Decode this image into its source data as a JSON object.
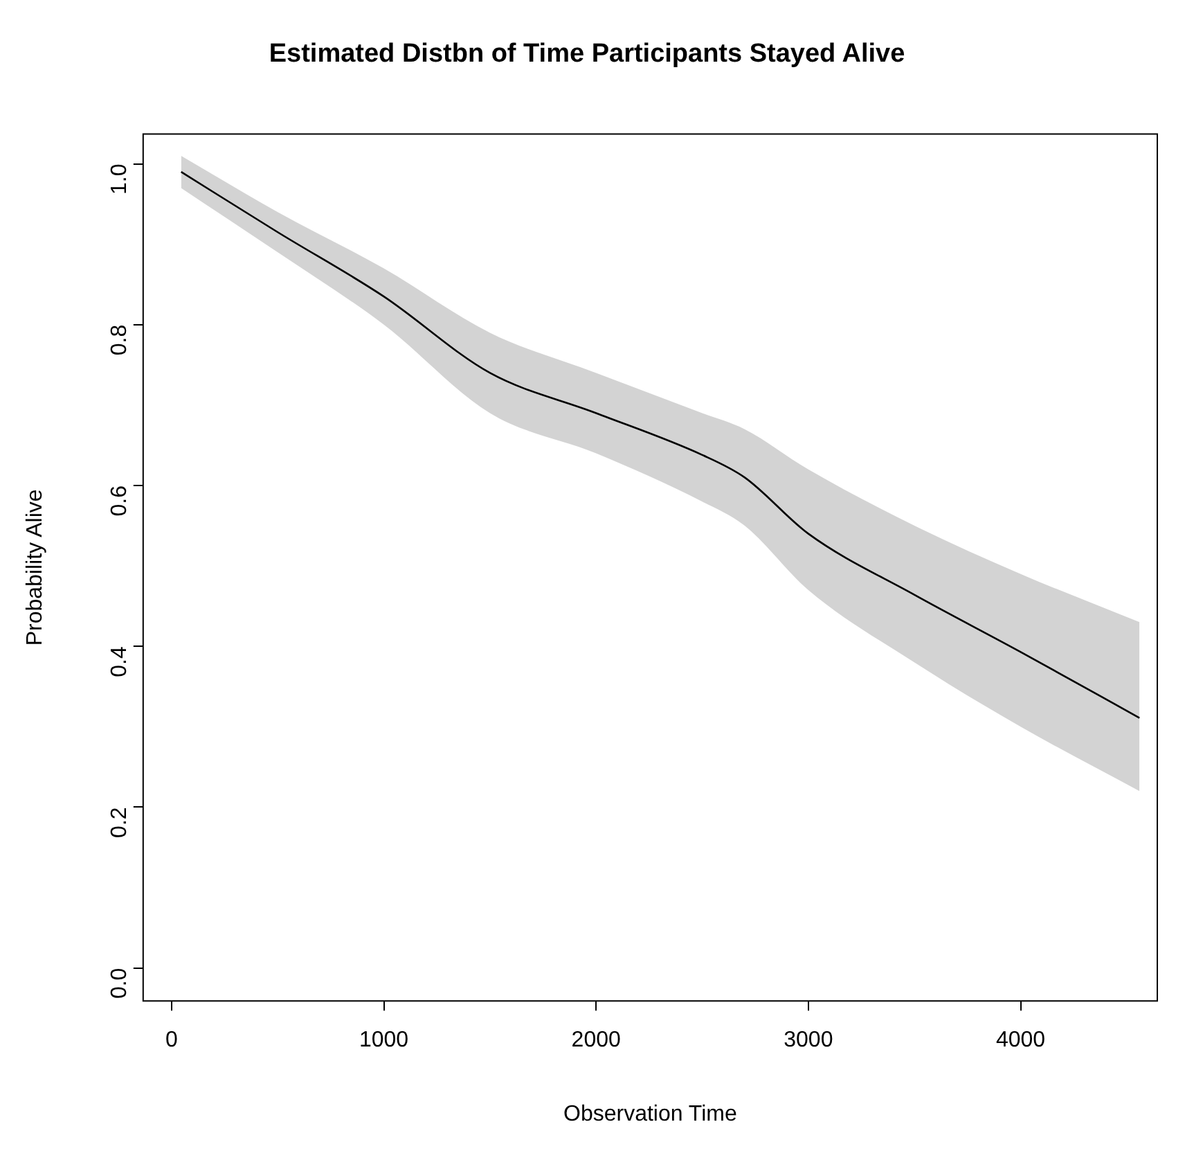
{
  "chart_data": {
    "type": "line",
    "title": "Estimated Distbn of Time Participants Stayed Alive",
    "xlabel": "Observation Time",
    "ylabel": "Probability Alive",
    "x": [
      45,
      500,
      1000,
      1500,
      2000,
      2500,
      2700,
      3000,
      3500,
      4000,
      4560
    ],
    "series": [
      {
        "color": "#000000",
        "values": [
          0.99,
          0.915,
          0.835,
          0.74,
          0.69,
          0.638,
          0.61,
          0.54,
          0.464,
          0.393,
          0.311
        ],
        "lower": [
          0.97,
          0.89,
          0.8,
          0.69,
          0.64,
          0.58,
          0.55,
          0.47,
          0.38,
          0.3,
          0.22
        ],
        "upper": [
          1.01,
          0.94,
          0.87,
          0.79,
          0.74,
          0.69,
          0.67,
          0.62,
          0.55,
          0.49,
          0.43
        ]
      }
    ],
    "xlim": [
      -134,
      4644
    ],
    "ylim": [
      -0.041,
      1.037
    ],
    "xticks": [
      0,
      1000,
      2000,
      3000,
      4000
    ],
    "yticks": [
      {
        "value": 0,
        "label": "0.0"
      },
      0.2,
      0.4,
      0.6,
      0.8,
      {
        "value": 1,
        "label": "1.0"
      }
    ],
    "grid": false,
    "legend": false,
    "marker": "none",
    "line_style": "solid"
  }
}
